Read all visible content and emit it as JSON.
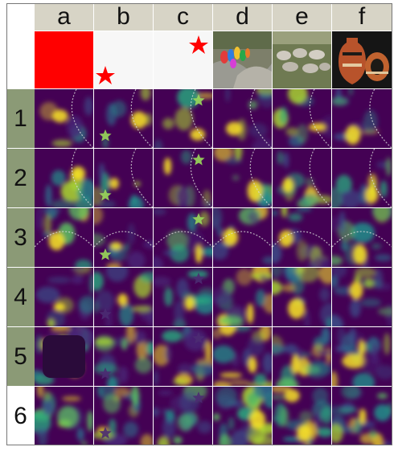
{
  "columns": [
    {
      "label": "a",
      "image": "solid-red"
    },
    {
      "label": "b",
      "image": "white-star-bottom-left"
    },
    {
      "label": "c",
      "image": "white-star-top-right"
    },
    {
      "label": "d",
      "image": "colorful-figures-on-rocks"
    },
    {
      "label": "e",
      "image": "sheep-herd"
    },
    {
      "label": "f",
      "image": "decorated-vases"
    }
  ],
  "rows": [
    {
      "label": "1"
    },
    {
      "label": "2"
    },
    {
      "label": "3"
    },
    {
      "label": "4"
    },
    {
      "label": "5"
    },
    {
      "label": "6"
    }
  ],
  "colors": {
    "header_bg": "#d7d4c6",
    "row_label_bg": "#8b9a76",
    "heatmap_low": "#440154",
    "heatmap_mid": "#21918c",
    "heatmap_high": "#fde725",
    "star_red": "#ff0000"
  }
}
